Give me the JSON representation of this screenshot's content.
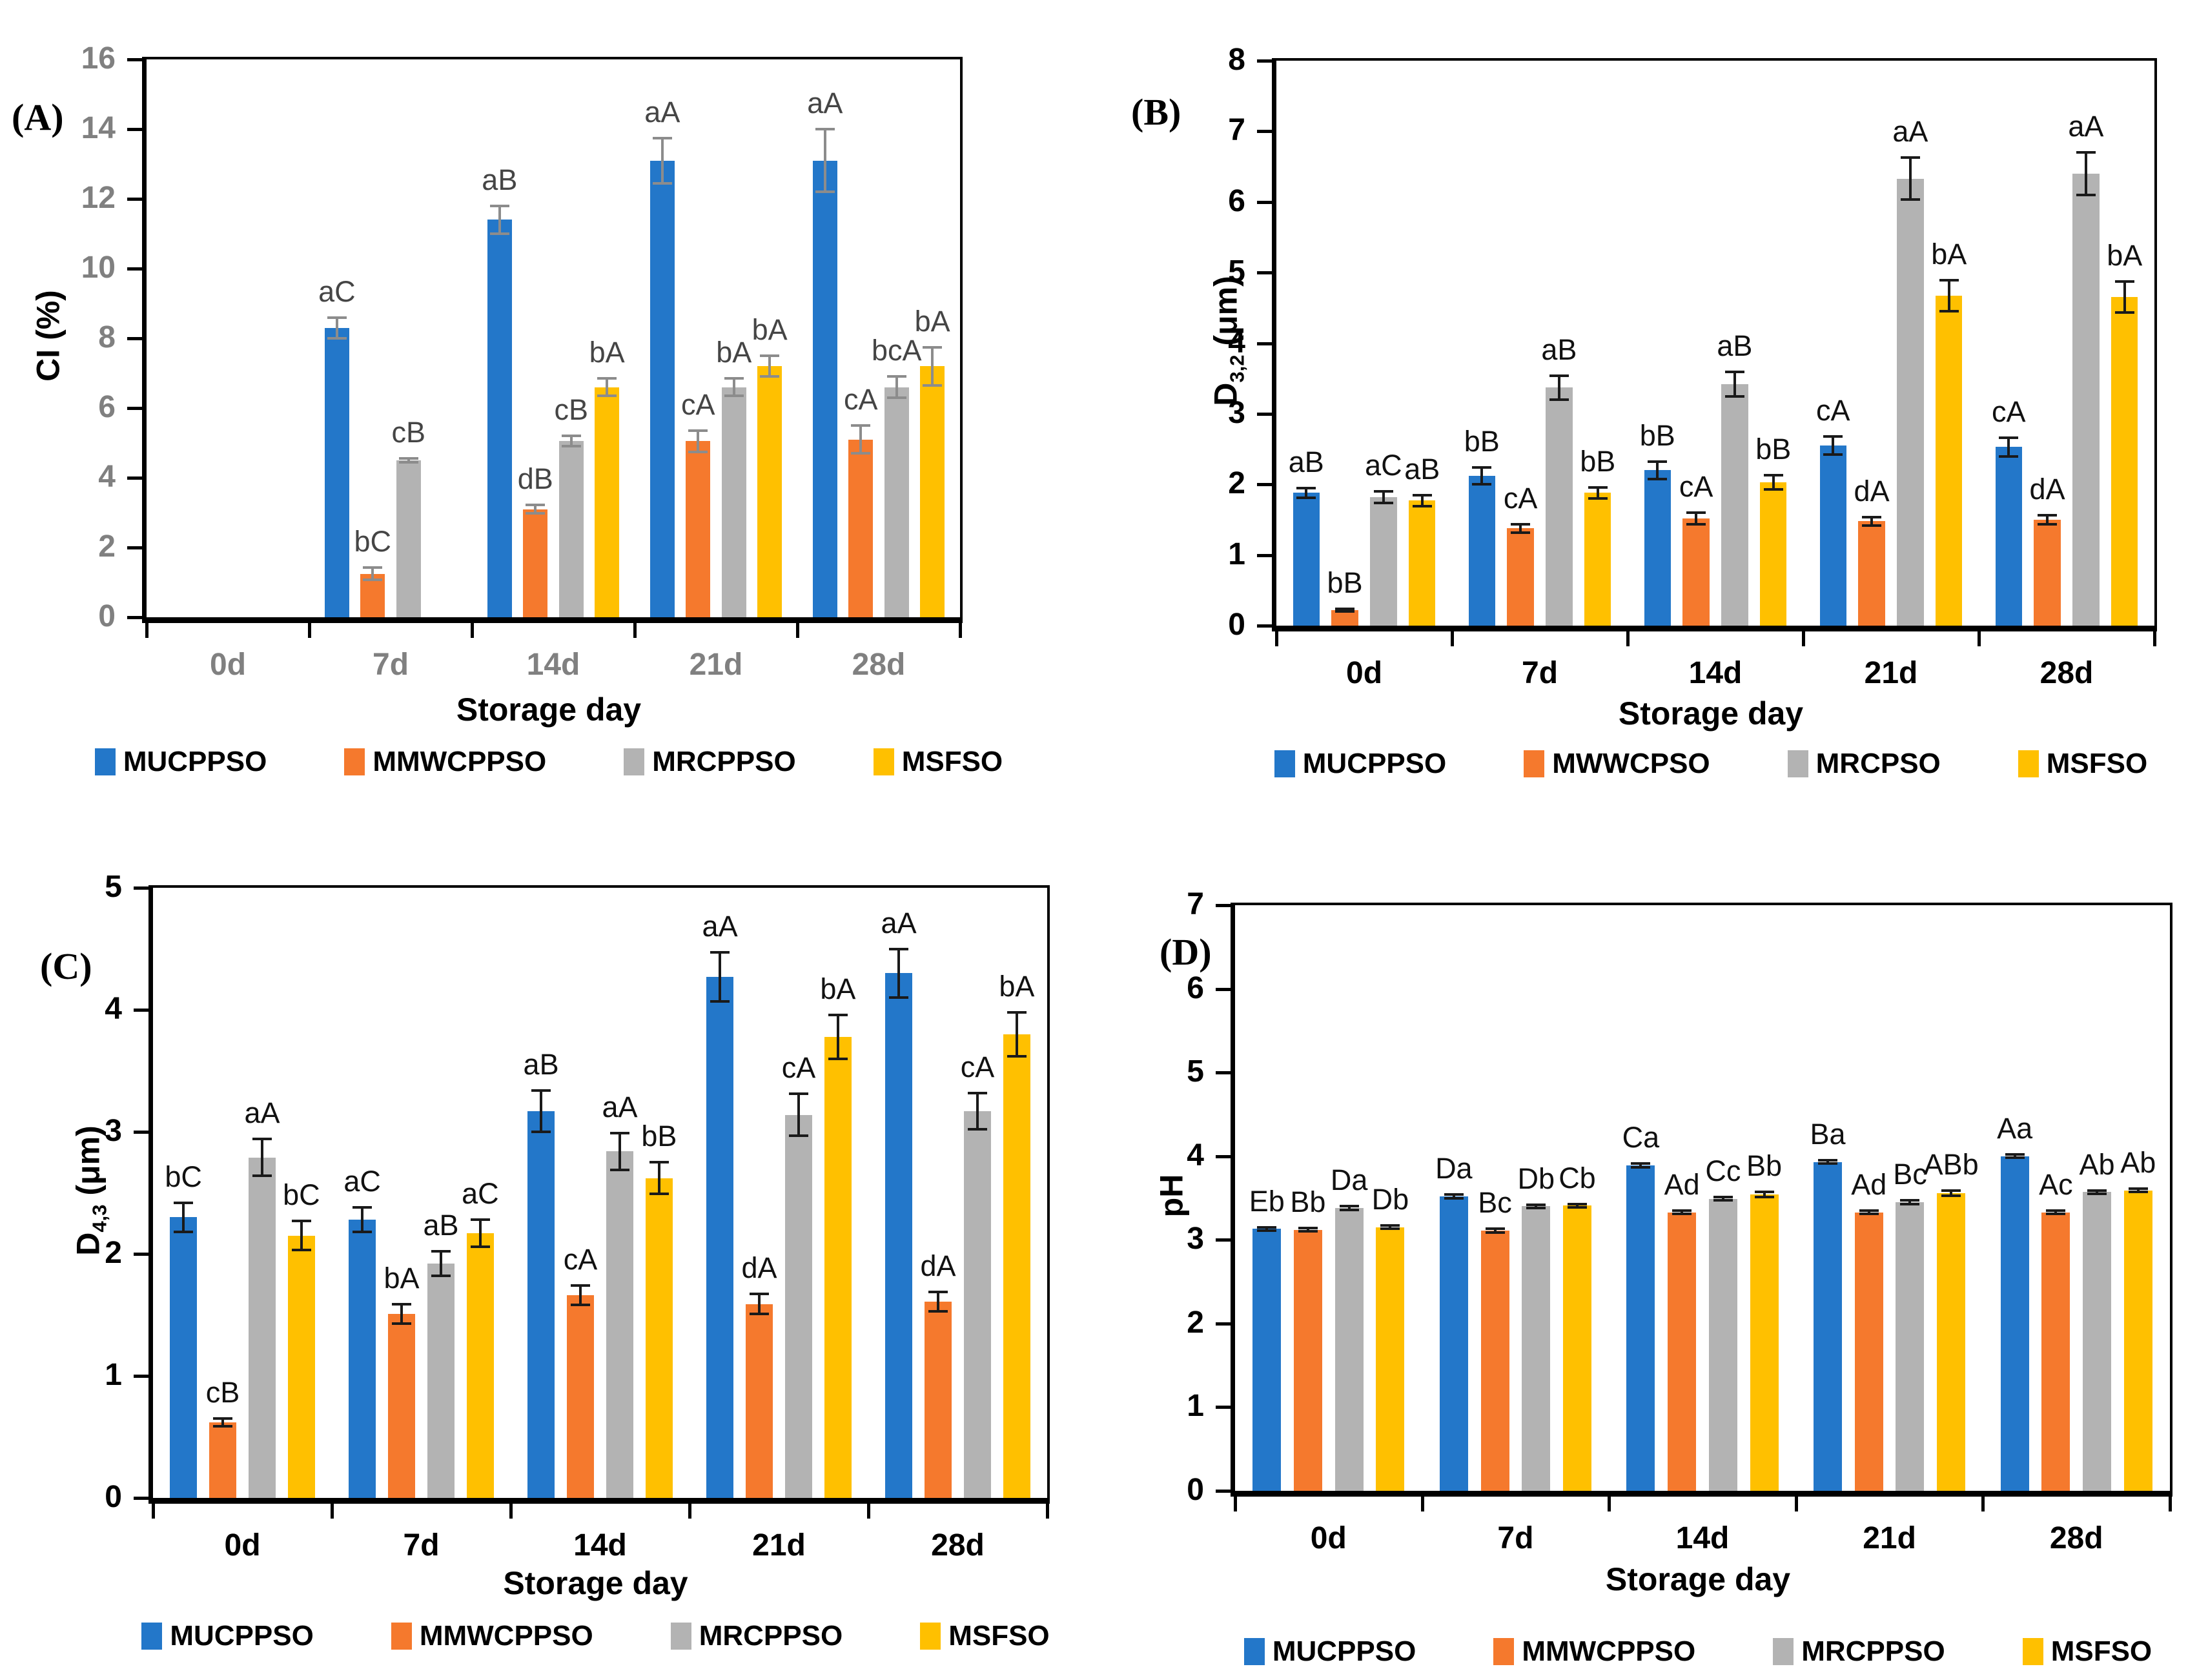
{
  "figure_title": "Four-panel bar chart figure (A–D): CI, D3,2, D4,3 and pH of emulsions over storage days",
  "palette": {
    "blue": "#2377C9",
    "orange": "#F5792D",
    "gray": "#B3B3B3",
    "yellow": "#FFC000"
  },
  "chart_data": [
    {
      "type": "bar",
      "panel_label": "(A)",
      "ylabel": {
        "prefix": "CI (%)",
        "sub": "",
        "suffix": ""
      },
      "xlabel": "Storage day",
      "ylim": [
        0,
        16
      ],
      "ytick_step": 2,
      "grid": false,
      "legend_position": "bottom",
      "categories": [
        "0d",
        "7d",
        "14d",
        "21d",
        "28d"
      ],
      "series": [
        {
          "name": "MUCPPSO",
          "color": "#2377C9",
          "values": [
            0,
            8.3,
            11.4,
            13.1,
            13.1
          ],
          "errors": [
            0,
            0.3,
            0.4,
            0.65,
            0.9
          ],
          "labels": [
            "",
            "aC",
            "aB",
            "aA",
            "aA"
          ]
        },
        {
          "name": "MMWCPPSO",
          "color": "#F5792D",
          "values": [
            0,
            1.25,
            3.1,
            5.05,
            5.1
          ],
          "errors": [
            0,
            0.18,
            0.12,
            0.3,
            0.4
          ],
          "labels": [
            "",
            "bC",
            "dB",
            "cA",
            "cA"
          ]
        },
        {
          "name": "MRCPPSO",
          "color": "#B3B3B3",
          "values": [
            0,
            4.5,
            5.05,
            6.6,
            6.6
          ],
          "errors": [
            0,
            0.05,
            0.15,
            0.25,
            0.3
          ],
          "labels": [
            "",
            "cB",
            "cB",
            "bA",
            "bcA"
          ]
        },
        {
          "name": "MSFSO",
          "color": "#FFC000",
          "values": [
            0,
            0,
            6.6,
            7.2,
            7.2
          ],
          "errors": [
            0,
            0,
            0.25,
            0.3,
            0.55
          ],
          "labels": [
            "",
            "",
            "bA",
            "bA",
            "bA"
          ]
        }
      ]
    },
    {
      "type": "bar",
      "panel_label": "(B)",
      "ylabel": {
        "prefix": "D",
        "sub": "3,2",
        "suffix": " (μm)"
      },
      "xlabel": "Storage day",
      "ylim": [
        0,
        8
      ],
      "ytick_step": 1,
      "grid": false,
      "legend_position": "bottom",
      "categories": [
        "0d",
        "7d",
        "14d",
        "21d",
        "28d"
      ],
      "series": [
        {
          "name": "MUCPPSO",
          "color": "#2377C9",
          "values": [
            1.88,
            2.12,
            2.2,
            2.55,
            2.53
          ],
          "errors": [
            0.07,
            0.12,
            0.12,
            0.13,
            0.13
          ],
          "labels": [
            "aB",
            "bB",
            "bB",
            "cA",
            "cA"
          ]
        },
        {
          "name": "MWWCPSO",
          "color": "#F5792D",
          "values": [
            0.22,
            1.38,
            1.52,
            1.48,
            1.5
          ],
          "errors": [
            0.02,
            0.06,
            0.08,
            0.06,
            0.06
          ],
          "labels": [
            "bB",
            "cA",
            "cA",
            "dA",
            "dA"
          ]
        },
        {
          "name": "MRCPSO",
          "color": "#B3B3B3",
          "values": [
            1.82,
            3.37,
            3.42,
            6.33,
            6.4
          ],
          "errors": [
            0.08,
            0.17,
            0.17,
            0.3,
            0.3
          ],
          "labels": [
            "aC",
            "aB",
            "aB",
            "aA",
            "aA"
          ]
        },
        {
          "name": "MSFSO",
          "color": "#FFC000",
          "values": [
            1.77,
            1.88,
            2.03,
            4.67,
            4.65
          ],
          "errors": [
            0.08,
            0.08,
            0.1,
            0.22,
            0.22
          ],
          "labels": [
            "aB",
            "bB",
            "bB",
            "bA",
            "bA"
          ]
        }
      ]
    },
    {
      "type": "bar",
      "panel_label": "(C)",
      "ylabel": {
        "prefix": "D",
        "sub": "4,3",
        "suffix": " (μm)"
      },
      "xlabel": "Storage day",
      "ylim": [
        0,
        5
      ],
      "ytick_step": 1,
      "grid": false,
      "legend_position": "bottom",
      "categories": [
        "0d",
        "7d",
        "14d",
        "21d",
        "28d"
      ],
      "series": [
        {
          "name": "MUCPPSO",
          "color": "#2377C9",
          "values": [
            2.3,
            2.28,
            3.17,
            4.27,
            4.3
          ],
          "errors": [
            0.12,
            0.1,
            0.17,
            0.2,
            0.2
          ],
          "labels": [
            "bC",
            "aC",
            "aB",
            "aA",
            "aA"
          ]
        },
        {
          "name": "MMWCPPSO",
          "color": "#F5792D",
          "values": [
            0.62,
            1.51,
            1.66,
            1.59,
            1.61
          ],
          "errors": [
            0.03,
            0.08,
            0.08,
            0.08,
            0.08
          ],
          "labels": [
            "cB",
            "bA",
            "cA",
            "dA",
            "dA"
          ]
        },
        {
          "name": "MRCPPSO",
          "color": "#B3B3B3",
          "values": [
            2.79,
            1.92,
            2.84,
            3.14,
            3.17
          ],
          "errors": [
            0.15,
            0.1,
            0.15,
            0.17,
            0.15
          ],
          "labels": [
            "aA",
            "aB",
            "aA",
            "cA",
            "cA"
          ]
        },
        {
          "name": "MSFSO",
          "color": "#FFC000",
          "values": [
            2.15,
            2.17,
            2.62,
            3.78,
            3.8
          ],
          "errors": [
            0.12,
            0.11,
            0.13,
            0.18,
            0.18
          ],
          "labels": [
            "bC",
            "aC",
            "bB",
            "bA",
            "bA"
          ]
        }
      ]
    },
    {
      "type": "bar",
      "panel_label": "(D)",
      "ylabel": {
        "prefix": "pH",
        "sub": "",
        "suffix": ""
      },
      "xlabel": "Storage day",
      "ylim": [
        0,
        7
      ],
      "ytick_step": 1,
      "grid": false,
      "legend_position": "bottom",
      "categories": [
        "0d",
        "7d",
        "14d",
        "21d",
        "28d"
      ],
      "series": [
        {
          "name": "MUCPPSO",
          "color": "#2377C9",
          "values": [
            3.13,
            3.52,
            3.89,
            3.93,
            4.0
          ],
          "errors": [
            0.02,
            0.02,
            0.02,
            0.02,
            0.02
          ],
          "labels": [
            "Eb",
            "Da",
            "Ca",
            "Ba",
            "Aa"
          ]
        },
        {
          "name": "MMWCPPSO",
          "color": "#F5792D",
          "values": [
            3.12,
            3.11,
            3.33,
            3.33,
            3.33
          ],
          "errors": [
            0.02,
            0.02,
            0.02,
            0.02,
            0.02
          ],
          "labels": [
            "Bb",
            "Bc",
            "Ad",
            "Ad",
            "Ac"
          ]
        },
        {
          "name": "MRCPPSO",
          "color": "#B3B3B3",
          "values": [
            3.38,
            3.4,
            3.49,
            3.45,
            3.57
          ],
          "errors": [
            0.02,
            0.02,
            0.02,
            0.02,
            0.02
          ],
          "labels": [
            "Da",
            "Db",
            "Cc",
            "Bc",
            "Ab"
          ]
        },
        {
          "name": "MSFSO",
          "color": "#FFC000",
          "values": [
            3.15,
            3.41,
            3.54,
            3.56,
            3.59
          ],
          "errors": [
            0.02,
            0.02,
            0.03,
            0.03,
            0.02
          ],
          "labels": [
            "Db",
            "Cb",
            "Bb",
            "ABb",
            "Ab"
          ]
        }
      ]
    }
  ]
}
